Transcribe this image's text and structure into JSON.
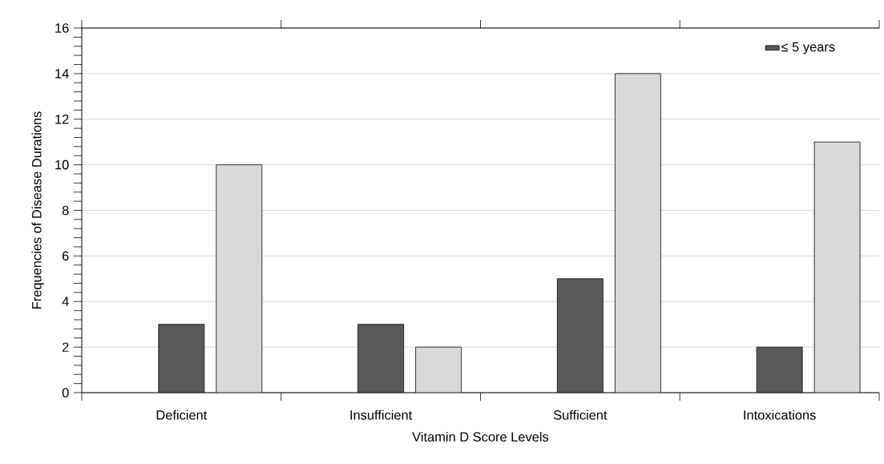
{
  "chart_data": {
    "type": "bar",
    "xlabel": "Vitamin D Score Levels",
    "ylabel": "Frequencies of Disease Durations",
    "categories": [
      "Deficient",
      "Insufficient",
      "Sufficient",
      "Intoxications"
    ],
    "series": [
      {
        "name": "≤ 5 years",
        "color": "#595959",
        "values": [
          3,
          3,
          5,
          2
        ]
      },
      {
        "color": "#d9d9d9",
        "values": [
          10,
          2,
          14,
          11
        ]
      }
    ],
    "ylim": [
      0,
      16
    ],
    "yticks": [
      0,
      2,
      4,
      6,
      8,
      10,
      12,
      14,
      16
    ],
    "grid": "y",
    "legend": "top right"
  }
}
